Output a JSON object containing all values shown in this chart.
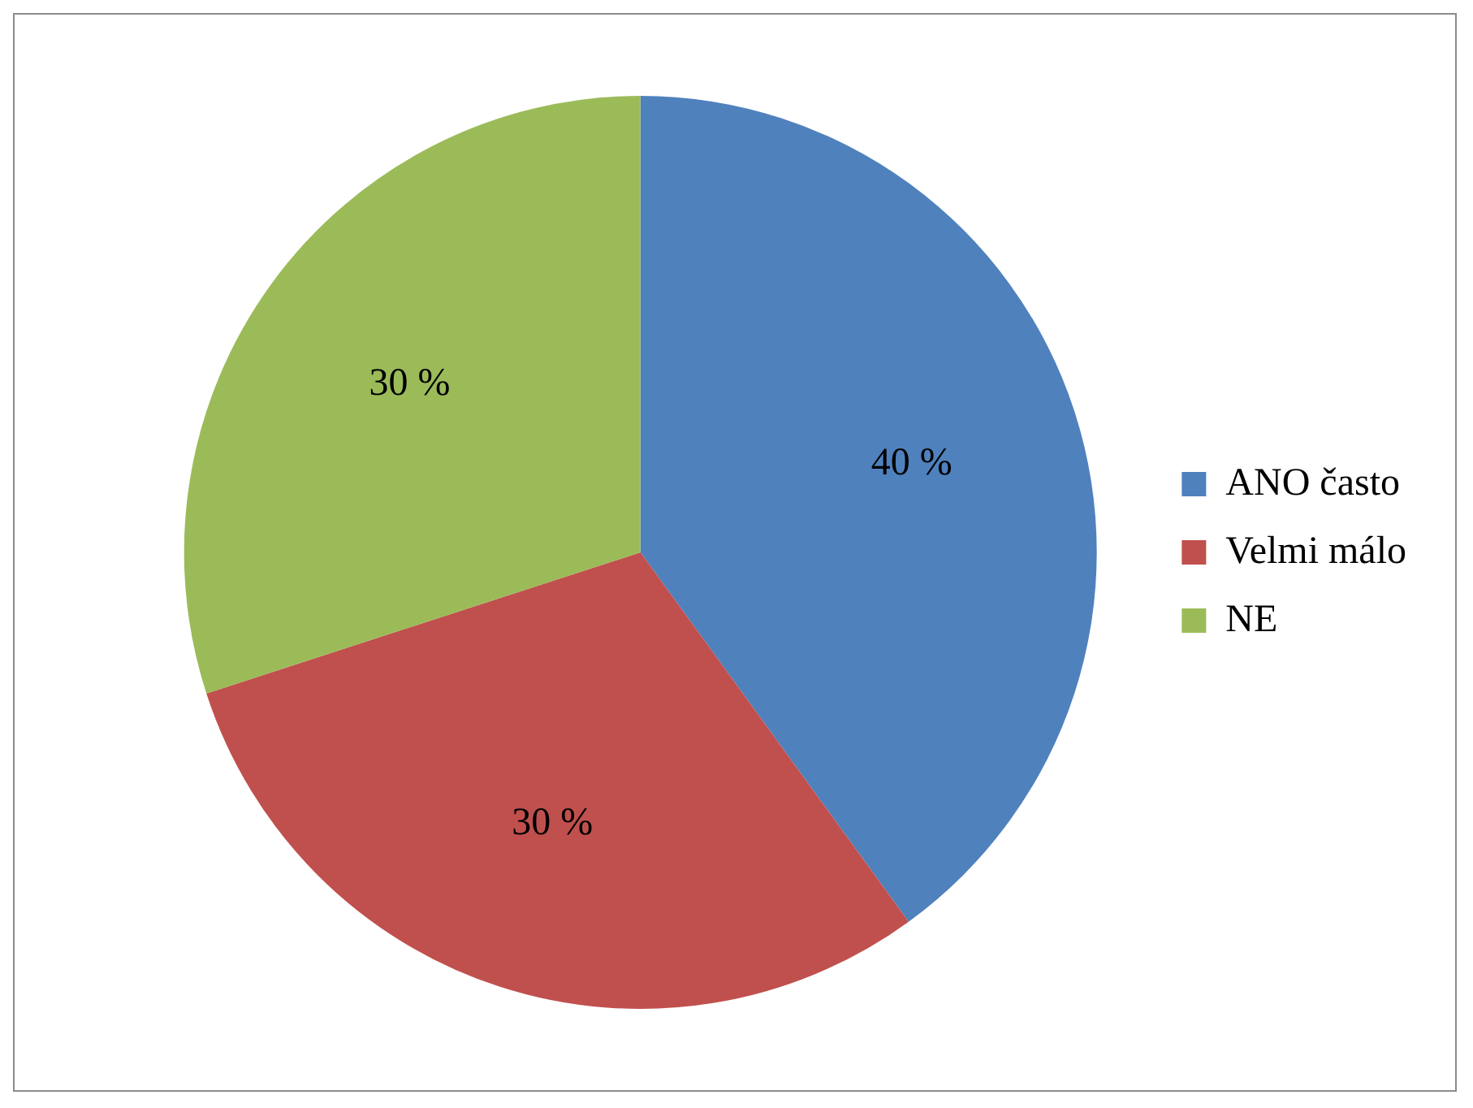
{
  "chart_data": {
    "type": "pie",
    "categories": [
      "ANO často",
      "Velmi málo",
      "NE"
    ],
    "values": [
      40,
      30,
      30
    ],
    "colors": [
      "#4f81bd",
      "#c0504d",
      "#9bbb59"
    ],
    "value_labels": [
      "40 %",
      "30 %",
      "30 %"
    ],
    "legend": "right"
  }
}
